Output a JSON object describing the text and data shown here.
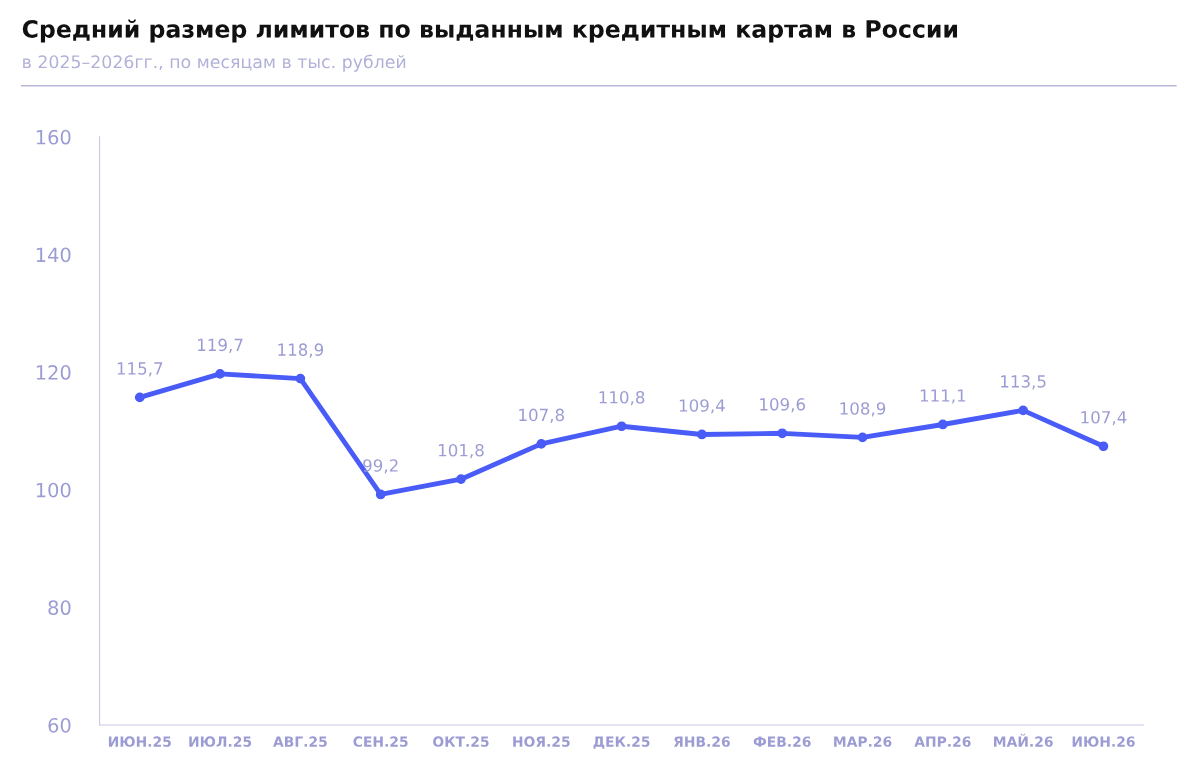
{
  "chart_data": {
    "type": "line",
    "title": "Средний размер лимитов по выданным кредитным картам в России",
    "subtitle": "в 2025–2026гг., по месяцам в тыс. рублей",
    "categories": [
      "ИЮН.25",
      "ИЮЛ.25",
      "АВГ.25",
      "СЕН.25",
      "ОКТ.25",
      "НОЯ.25",
      "ДЕК.25",
      "ЯНВ.26",
      "ФЕВ.26",
      "МАР.26",
      "АПР.26",
      "МАЙ.26",
      "ИЮН.26"
    ],
    "series": [
      {
        "color": "#4a5cf7",
        "values": [
          115.7,
          119.7,
          118.9,
          99.2,
          101.8,
          107.8,
          110.8,
          109.4,
          109.6,
          108.9,
          111.1,
          113.5,
          107.4
        ],
        "value_labels": [
          "115,7",
          "119,7",
          "118,9",
          "99,2",
          "101,8",
          "107,8",
          "110,8",
          "109,4",
          "109,6",
          "108,9",
          "111,1",
          "113,5",
          "107,4"
        ]
      }
    ],
    "ylim": [
      60,
      160
    ],
    "yticks": [
      60,
      80,
      100,
      120,
      140,
      160
    ],
    "grid": false,
    "marker": "circle",
    "line_style": "solid"
  }
}
